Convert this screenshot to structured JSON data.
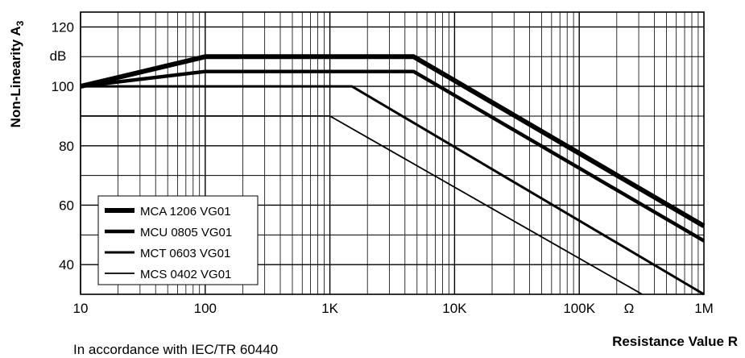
{
  "chart_data": {
    "type": "line",
    "y_axis_label": "Non-Linearity A",
    "y_axis_label_subscript": "3",
    "y_unit": "dB",
    "x_axis_label": "Resistance Value R",
    "x_unit": "Ω",
    "x_scale": "log",
    "xlim": [
      10,
      1000000
    ],
    "ylim": [
      30,
      125
    ],
    "x_tick_labels": [
      "10",
      "100",
      "1K",
      "10K",
      "100K",
      "1M"
    ],
    "x_tick_values": [
      10,
      100,
      1000,
      10000,
      100000,
      1000000
    ],
    "y_tick_labels": [
      "40",
      "60",
      "80",
      "100",
      "120"
    ],
    "y_tick_values": [
      40,
      60,
      80,
      100,
      120
    ],
    "grid": true,
    "legend_position": "bottom-left",
    "note": "In accordance with IEC/TR 60440",
    "series": [
      {
        "name": "MCA 1206 VG01",
        "weight": "heaviest",
        "x": [
          10,
          100,
          4700,
          1000000
        ],
        "y": [
          100,
          110,
          110,
          53
        ]
      },
      {
        "name": "MCU 0805 VG01",
        "weight": "heavy",
        "x": [
          10,
          100,
          4700,
          1000000
        ],
        "y": [
          100,
          105,
          105,
          48
        ]
      },
      {
        "name": "MCT 0603 VG01",
        "weight": "medium",
        "x": [
          10,
          1500,
          1000000
        ],
        "y": [
          100,
          100,
          30
        ]
      },
      {
        "name": "MCS 0402 VG01",
        "weight": "thin",
        "x": [
          10,
          1000,
          320000
        ],
        "y": [
          90,
          90,
          30
        ]
      }
    ]
  }
}
